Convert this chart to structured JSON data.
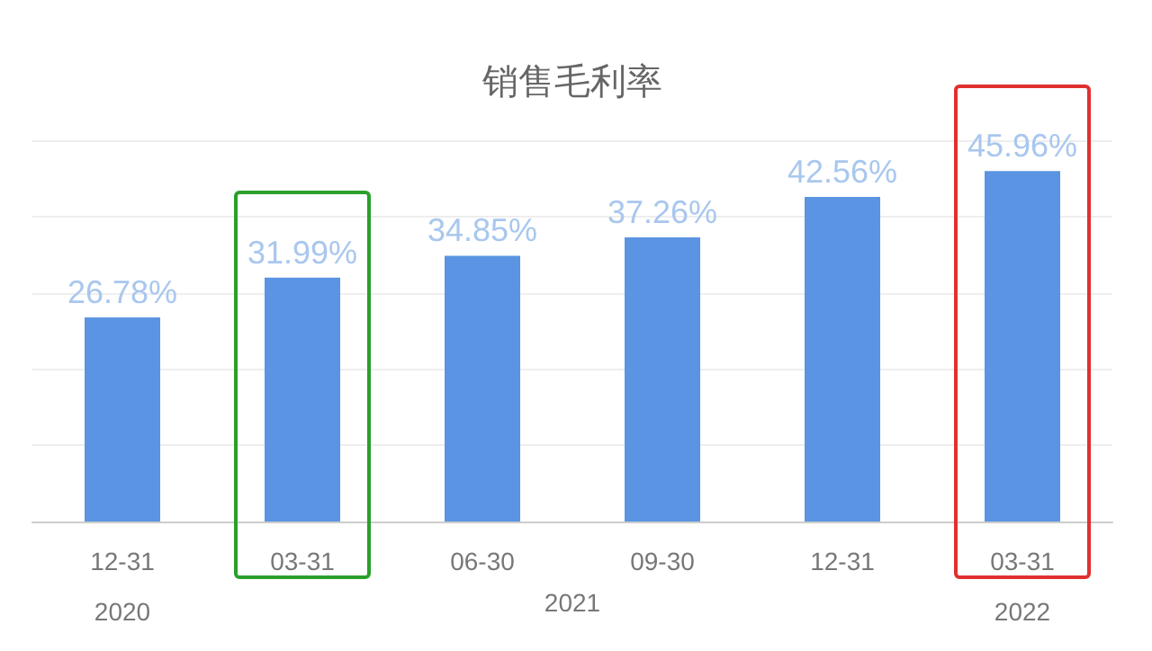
{
  "chart_data": {
    "type": "bar",
    "title": "销售毛利率",
    "categories": [
      "12-31\n2020",
      "03-31",
      "06-30",
      "09-30",
      "12-31",
      "03-31\n2022"
    ],
    "values": [
      26.78,
      31.99,
      34.85,
      37.26,
      42.56,
      45.96
    ],
    "value_labels": [
      "26.78%",
      "31.99%",
      "34.85%",
      "37.26%",
      "42.56%",
      "45.96%"
    ],
    "color": "#5a94e2",
    "annotations": [
      "2021"
    ],
    "grid": "y"
  }
}
